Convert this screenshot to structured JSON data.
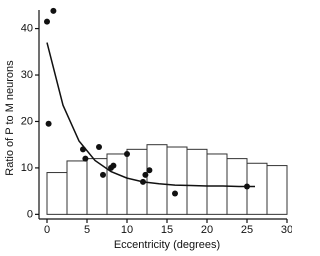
{
  "chart_data": [
    {
      "type": "histogram",
      "xlabel": "Eccentricity (degrees)",
      "ylabel": "Ratio of P to M neurons",
      "bins": [
        0,
        2.5,
        5,
        7.5,
        10,
        12.5,
        15,
        17.5,
        20,
        22.5,
        25,
        27.5,
        30
      ],
      "values": [
        9,
        11.5,
        12,
        13,
        14,
        15,
        14.5,
        14,
        13,
        12,
        11,
        10.5
      ],
      "color": "#ffffff",
      "xlim": [
        -1,
        30
      ],
      "ylim": [
        -1,
        44
      ],
      "xticks": [
        0,
        5,
        10,
        15,
        20,
        25,
        30
      ],
      "yticks": [
        0,
        10,
        20,
        30,
        40
      ]
    },
    {
      "type": "line",
      "color": "#111111",
      "x": [
        0,
        2,
        4,
        6,
        8,
        10,
        12,
        14,
        16,
        18,
        20,
        22,
        24,
        26
      ],
      "values": [
        37,
        23.5,
        15.8,
        11.6,
        9.2,
        7.8,
        7.0,
        6.6,
        6.3,
        6.2,
        6.1,
        6.1,
        6.0,
        6.0
      ],
      "xlim": [
        -1,
        30
      ],
      "ylim": [
        -1,
        44
      ]
    },
    {
      "type": "scatter",
      "color": "#111111",
      "x": [
        0,
        0.8,
        0.2,
        4.5,
        4.8,
        6.5,
        7,
        8,
        8.3,
        10,
        12,
        12.3,
        12.8,
        16,
        25
      ],
      "values": [
        41.5,
        43.8,
        19.5,
        14,
        12,
        14.5,
        8.5,
        10,
        10.5,
        13,
        7,
        8.5,
        9.5,
        4.5,
        6
      ],
      "xlim": [
        -1,
        30
      ],
      "ylim": [
        -1,
        44
      ]
    }
  ]
}
